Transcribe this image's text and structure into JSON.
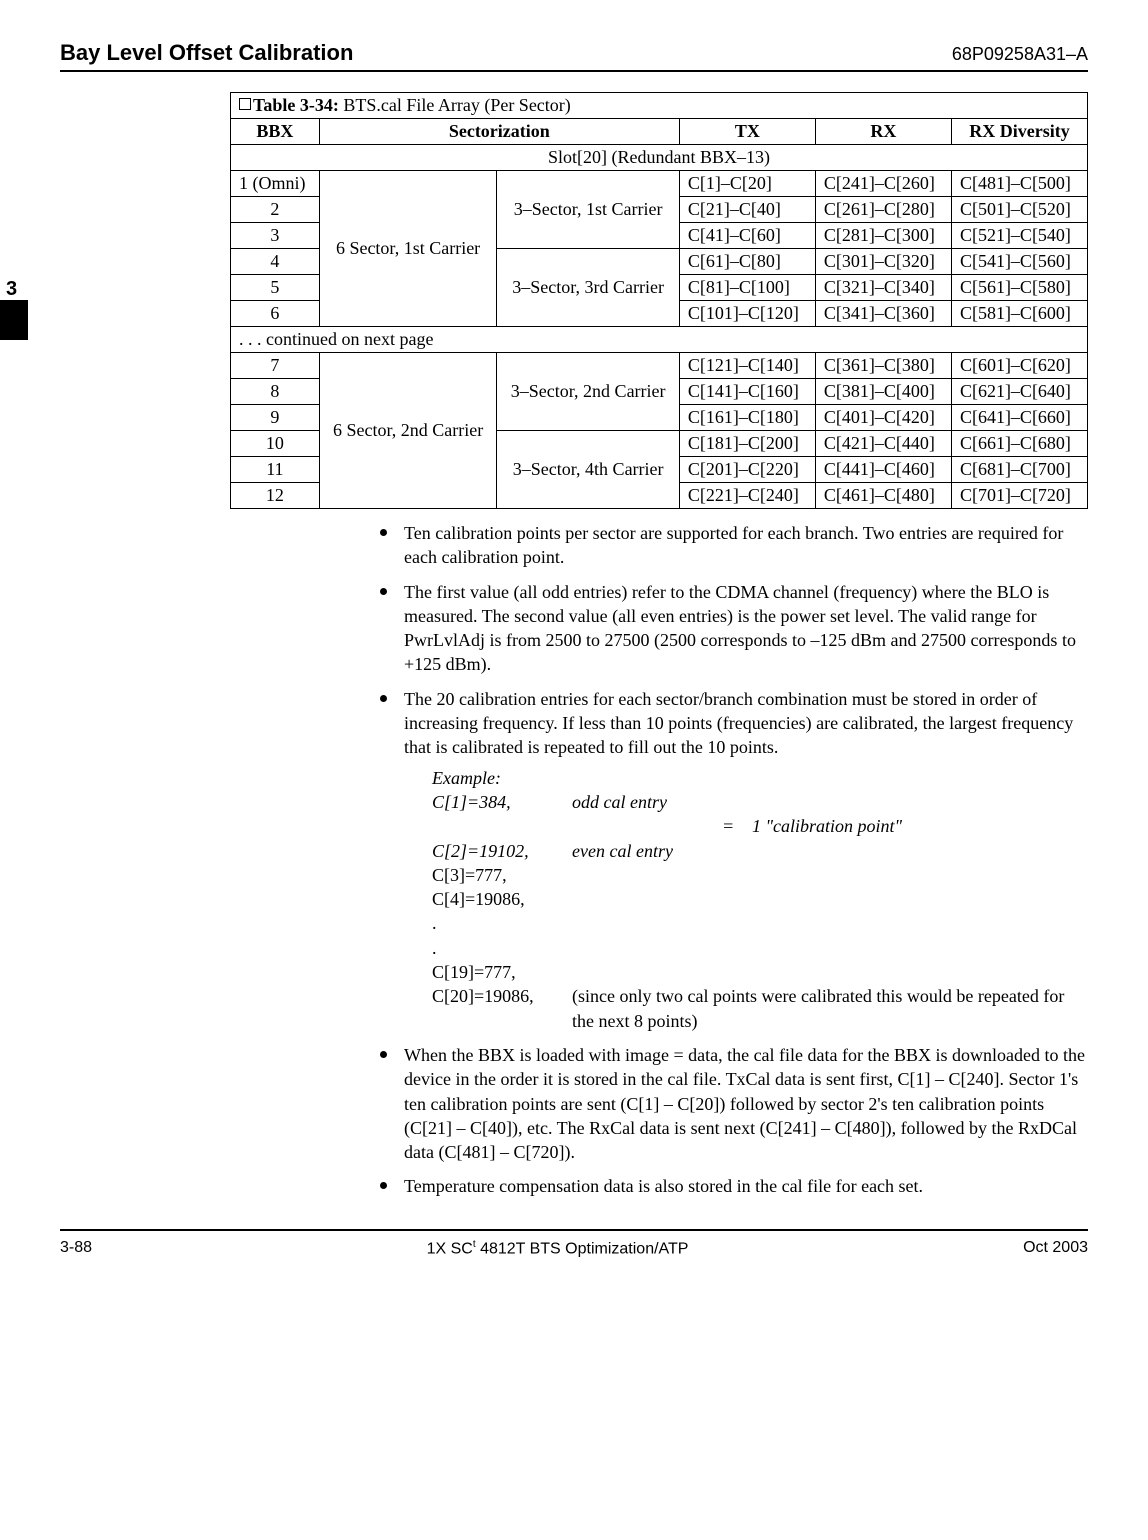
{
  "header": {
    "title": "Bay Level Offset Calibration",
    "doc_no": "68P09258A31–A"
  },
  "tab": {
    "label": "3"
  },
  "table": {
    "caption_bold": "Table 3-34:",
    "caption_rest": " BTS.cal File Array (Per Sector)",
    "columns": [
      "BBX",
      "Sectorization",
      "TX",
      "RX",
      "RX Diversity"
    ],
    "slot_header": "Slot[20] (Redundant BBX–13)",
    "group1a": "6 Sector, 1st Carrier",
    "group1b_top": "3–Sector, 1st Carrier",
    "group1b_bot": "3–Sector, 3rd Carrier",
    "group2a": "6 Sector, 2nd Carrier",
    "group2b_top": "3–Sector, 2nd Carrier",
    "group2b_bot": "3–Sector, 4th Carrier",
    "continued": ". . . continued on next page",
    "rows_top": [
      {
        "bbx": "1 (Omni)",
        "tx": "C[1]–C[20]",
        "rx": "C[241]–C[260]",
        "rxd": "C[481]–C[500]"
      },
      {
        "bbx": "2",
        "tx": "C[21]–C[40]",
        "rx": "C[261]–C[280]",
        "rxd": "C[501]–C[520]"
      },
      {
        "bbx": "3",
        "tx": "C[41]–C[60]",
        "rx": "C[281]–C[300]",
        "rxd": "C[521]–C[540]"
      },
      {
        "bbx": "4",
        "tx": "C[61]–C[80]",
        "rx": "C[301]–C[320]",
        "rxd": "C[541]–C[560]"
      },
      {
        "bbx": "5",
        "tx": "C[81]–C[100]",
        "rx": "C[321]–C[340]",
        "rxd": "C[561]–C[580]"
      },
      {
        "bbx": "6",
        "tx": "C[101]–C[120]",
        "rx": "C[341]–C[360]",
        "rxd": "C[581]–C[600]"
      }
    ],
    "rows_bot": [
      {
        "bbx": "7",
        "tx": "C[121]–C[140]",
        "rx": "C[361]–C[380]",
        "rxd": "C[601]–C[620]"
      },
      {
        "bbx": "8",
        "tx": "C[141]–C[160]",
        "rx": "C[381]–C[400]",
        "rxd": "C[621]–C[640]"
      },
      {
        "bbx": "9",
        "tx": "C[161]–C[180]",
        "rx": "C[401]–C[420]",
        "rxd": "C[641]–C[660]"
      },
      {
        "bbx": "10",
        "tx": "C[181]–C[200]",
        "rx": "C[421]–C[440]",
        "rxd": "C[661]–C[680]"
      },
      {
        "bbx": "11",
        "tx": "C[201]–C[220]",
        "rx": "C[441]–C[460]",
        "rxd": "C[681]–C[700]"
      },
      {
        "bbx": "12",
        "tx": "C[221]–C[240]",
        "rx": "C[461]–C[480]",
        "rxd": "C[701]–C[720]"
      }
    ]
  },
  "bullets": {
    "b1": "Ten calibration points per sector are supported for each branch. Two entries are required for each calibration point.",
    "b2": "The first value (all odd entries) refer to the CDMA channel (frequency) where the BLO is measured. The second value (all even entries) is the power set level. The valid range for PwrLvlAdj is from 2500 to 27500 (2500 corresponds to –125 dBm and 27500 corresponds to +125 dBm).",
    "b3": "The 20 calibration entries for each sector/branch combination must be stored in order of increasing frequency. If less than 10 points (frequencies) are calibrated, the largest frequency that is calibrated is repeated to fill out the 10 points.",
    "b4": "When the BBX is loaded with image = data, the cal file data for the BBX is downloaded to the device in the order it is stored in the cal file. TxCal data is sent first, C[1] – C[240]. Sector 1's ten calibration points are sent (C[1] – C[20]) followed by sector 2's ten calibration points (C[21] – C[40]), etc. The RxCal data is sent next (C[241] – C[480]), followed by the RxDCal data (C[481] – C[720]).",
    "b5": "Temperature compensation data is also stored in the cal file for each set."
  },
  "example": {
    "title": "Example:",
    "r1a": "C[1]=384,",
    "r1b": "odd cal entry",
    "eq": "=",
    "eq_txt": "1 \"calibration point\"",
    "r2a": "C[2]=19102,",
    "r2b": "even cal entry",
    "r3": "C[3]=777,",
    "r4": "C[4]=19086,",
    "dot": ".",
    "r5": "C[19]=777,",
    "r6a": "C[20]=19086,",
    "r6b": "(since only two cal points were calibrated this would be repeated for the next 8 points)"
  },
  "footer": {
    "left": "3-88",
    "center_prefix": "1X SC",
    "center_rest": " 4812T BTS Optimization/ATP",
    "right": "Oct 2003"
  }
}
